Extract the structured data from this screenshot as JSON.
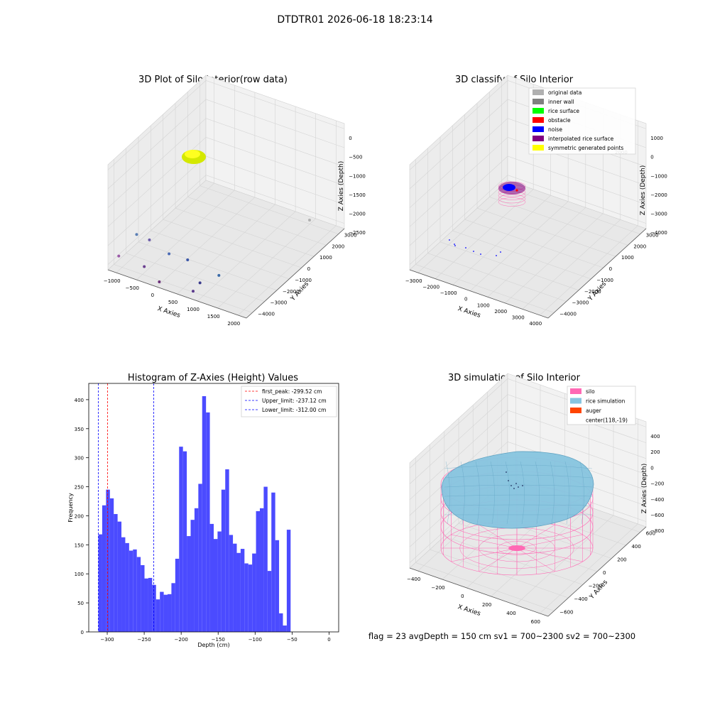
{
  "suptitle": "DTDTR01 2026-06-18 18:23:14",
  "footer_text": "flag = 23   avgDepth = 150 cm   sv1 = 700~2300   sv2 = 700~2300",
  "colors": {
    "hist_bar": "#4b4bff",
    "first_peak_line": "#ff0000",
    "limit_line": "#0000ff",
    "silo": "#ff69b4",
    "rice": "#87c5e0",
    "auger": "#ff4500"
  },
  "chart_data": [
    {
      "type": "scatter3d",
      "title": "3D Plot of Silo Interior(row data)",
      "xlabel": "X Axies",
      "ylabel": "Y Axies",
      "zlabel": "Z Axies (Depth)",
      "x_ticks": [
        "−1000",
        "−500",
        "0",
        "500",
        "1000",
        "1500",
        "2000"
      ],
      "y_ticks": [
        "−4000",
        "−3000",
        "−2000",
        "−1000",
        "0",
        "1000",
        "2000",
        "3000"
      ],
      "z_ticks": [
        "0",
        "−500",
        "−1000",
        "−1500",
        "−2000",
        "−2500"
      ],
      "xlim": [
        -1100,
        2200
      ],
      "ylim": [
        -4300,
        3500
      ],
      "zlim": [
        -2800,
        100
      ],
      "grid": true
    },
    {
      "type": "scatter3d",
      "title": "3D classify of Silo Interior",
      "xlabel": "X Axies",
      "ylabel": "Y Axies",
      "zlabel": "Z Axies (Depth)",
      "x_ticks": [
        "−3000",
        "−2000",
        "−1000",
        "0",
        "1000",
        "2000",
        "3000",
        "4000"
      ],
      "y_ticks": [
        "−4000",
        "−3000",
        "−2000",
        "−1000",
        "0",
        "1000",
        "2000",
        "3000"
      ],
      "z_ticks": [
        "1000",
        "0",
        "−1000",
        "−2000",
        "−3000",
        "−4000"
      ],
      "z_extra_tick": "2000",
      "xlim": [
        -3200,
        4200
      ],
      "ylim": [
        -4300,
        3500
      ],
      "zlim": [
        -4400,
        2200
      ],
      "grid": true,
      "legend_position": "top-right",
      "legend": [
        {
          "label": "original data",
          "color": "#b0b0b0"
        },
        {
          "label": "inner wall",
          "color": "#808080"
        },
        {
          "label": "rice surface",
          "color": "#00ff00"
        },
        {
          "label": "obstacle",
          "color": "#ff0000"
        },
        {
          "label": "noise",
          "color": "#0000ff"
        },
        {
          "label": "interpolated rice surface",
          "color": "#800080"
        },
        {
          "label": "symmetric generated points",
          "color": "#ffff00"
        }
      ]
    },
    {
      "type": "bar",
      "title": "Histogram of Z-Axies (Height) Values",
      "xlabel": "Depth (cm)",
      "ylabel": "Frequency",
      "xlim": [
        -325,
        13
      ],
      "ylim": [
        0,
        428
      ],
      "x_ticks": [
        -300,
        -250,
        -200,
        -150,
        -100,
        -50,
        0
      ],
      "y_ticks": [
        0,
        50,
        100,
        150,
        200,
        250,
        300,
        350,
        400
      ],
      "bin_start": -312,
      "bin_width": 5.2,
      "values": [
        168,
        218,
        245,
        230,
        203,
        190,
        163,
        153,
        140,
        142,
        129,
        115,
        92,
        93,
        81,
        56,
        69,
        64,
        65,
        84,
        126,
        319,
        311,
        165,
        193,
        213,
        255,
        406,
        378,
        186,
        160,
        173,
        245,
        280,
        167,
        152,
        136,
        143,
        118,
        116,
        135,
        208,
        213,
        250,
        105,
        240,
        158,
        32,
        11,
        176
      ],
      "vlines": [
        {
          "label": "first_peak: -299.52 cm",
          "x": -299.52,
          "color": "#ff0000"
        },
        {
          "label": "Upper_limit: -237.12 cm",
          "x": -237.12,
          "color": "#0000ff"
        },
        {
          "label": "Lower_limit: -312.00 cm",
          "x": -312.0,
          "color": "#0000ff"
        }
      ],
      "legend_position": "top-right",
      "grid": false
    },
    {
      "type": "surface3d",
      "title": "3D simulation of Silo Interior",
      "xlabel": "X Axies",
      "ylabel": "Y Axies",
      "zlabel": "Z Axies (Depth)",
      "x_ticks": [
        "−400",
        "−200",
        "0",
        "200",
        "400",
        "600"
      ],
      "y_ticks": [
        "−600",
        "−400",
        "−200",
        "0",
        "200",
        "400",
        "600"
      ],
      "z_ticks": [
        "400",
        "200",
        "0",
        "−200",
        "−400",
        "−600",
        "−800"
      ],
      "grid": true,
      "legend_position": "top-right",
      "legend": [
        {
          "label": "silo",
          "color": "#ff69b4"
        },
        {
          "label": "rice simulation",
          "color": "#87c5e0"
        },
        {
          "label": "auger",
          "color": "#ff4500"
        },
        {
          "label": "center(118,-19)",
          "color": ""
        }
      ]
    }
  ]
}
